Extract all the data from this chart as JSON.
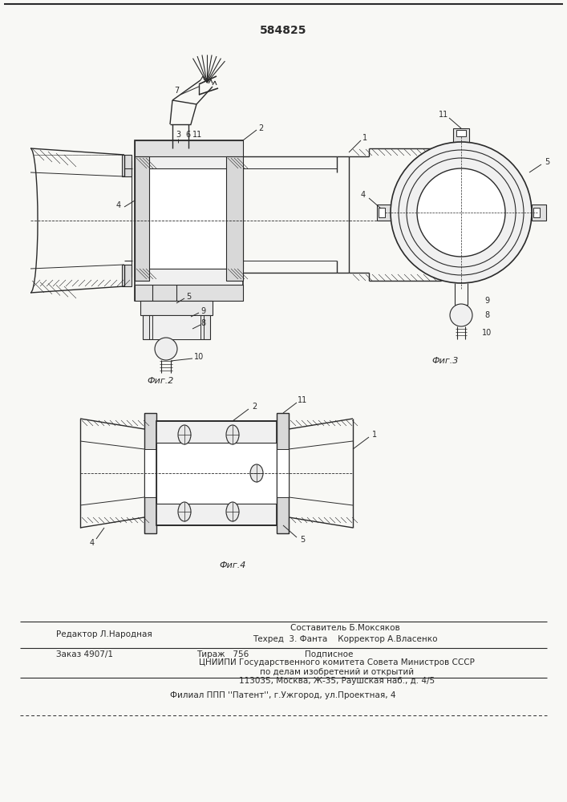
{
  "patent_number": "584825",
  "background_color": "#f8f8f5",
  "line_color": "#2a2a2a",
  "fig2_label": "Фиг.2",
  "fig3_label": "Фиг.3",
  "fig4_label": "Фиг.4",
  "editor_line": "Редактор Л.Народная",
  "composer_line": "Составитель Б.Моксяков",
  "techred_line": "Техред  3. Фанта    Корректор А.Власенко",
  "order_line": "Заказ 4907/1",
  "tirazh_line": "Тираж   756",
  "podpisnoe_line": "Подписное",
  "cniipи_line": "ЦНИИПИ Государственного комитета Совета Министров СССР",
  "inventions_line": "по делам изобретений и открытий",
  "address_line": "113035, Москва, Ж-35, Раушская наб., д. 4/5",
  "filial_line": "Филиал ППП ''Патент'', г.Ужгород, ул.Проектная, 4"
}
